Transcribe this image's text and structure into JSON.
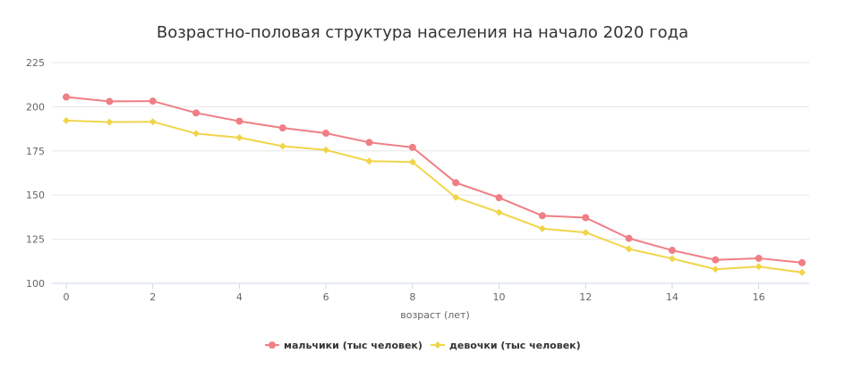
{
  "chart_data": {
    "type": "line",
    "title": "Возрастно-половая структура населения на начало 2020 года",
    "xlabel": "возраст (лет)",
    "ylabel": "",
    "x": [
      0,
      1,
      2,
      3,
      4,
      5,
      6,
      7,
      8,
      9,
      10,
      11,
      12,
      13,
      14,
      15,
      16,
      17
    ],
    "x_ticks": [
      "0",
      "2",
      "4",
      "6",
      "8",
      "10",
      "12",
      "14",
      "16"
    ],
    "y_ticks": [
      "100",
      "125",
      "150",
      "175",
      "200",
      "225"
    ],
    "xlim": [
      0,
      17
    ],
    "ylim": [
      100,
      225
    ],
    "grid": true,
    "legend_position": "bottom-center",
    "series": [
      {
        "name": "мальчики (тыс человек)",
        "color": "#ef7f85",
        "marker": "circle",
        "values": [
          205.5,
          203,
          203.2,
          196.5,
          191.8,
          188,
          185,
          179.8,
          177,
          157,
          148.5,
          138.3,
          137.2,
          125.5,
          118.7,
          113.3,
          114.2,
          111.7
        ]
      },
      {
        "name": "девочки (тыс человек)",
        "color": "#f0d54a",
        "marker": "diamond",
        "values": [
          192.2,
          191.3,
          191.5,
          184.8,
          182.5,
          177.7,
          175.5,
          169.2,
          168.7,
          148.7,
          140.2,
          131,
          128.8,
          119.5,
          114,
          108,
          109.5,
          106.2
        ]
      }
    ]
  }
}
